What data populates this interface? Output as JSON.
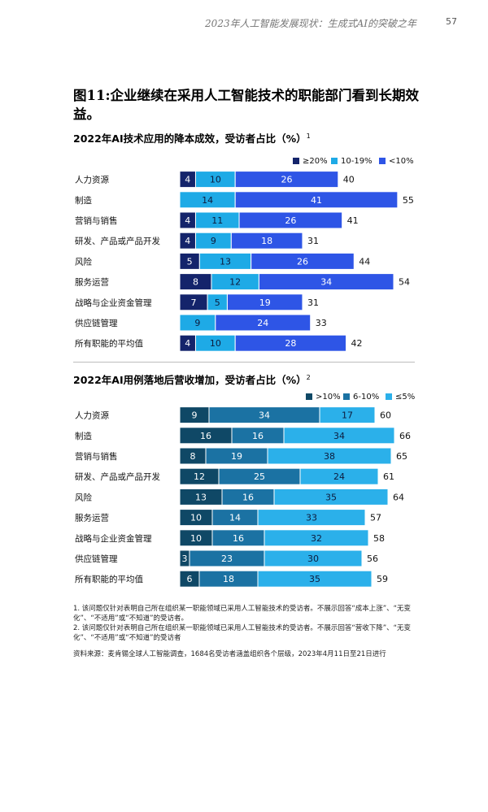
{
  "header": {
    "running_title": "2023年人工智能发展现状：生成式AI的突破之年",
    "page_number": "57"
  },
  "figure_title": "图11:企业继续在采用人工智能技术的职能部门看到长期效益。",
  "chart_data": [
    {
      "type": "bar",
      "stacked": true,
      "orientation": "horizontal",
      "title": "2022年AI技术应用的降本成效，受访者占比（%）",
      "footnote_ref": "1",
      "categories": [
        "人力资源",
        "制造",
        "营销与销售",
        "研发、产品或产品开发",
        "风险",
        "服务运营",
        "战略与企业资金管理",
        "供应链管理",
        "所有职能的平均值"
      ],
      "series": [
        {
          "name": "≥20%",
          "color": "#14246b",
          "values": [
            4,
            0,
            4,
            4,
            5,
            8,
            7,
            0,
            4
          ]
        },
        {
          "name": "10-19%",
          "color": "#1eaae6",
          "values": [
            10,
            14,
            11,
            9,
            13,
            12,
            5,
            9,
            10
          ]
        },
        {
          "name": "<10%",
          "color": "#2e55e6",
          "values": [
            26,
            41,
            26,
            18,
            26,
            34,
            19,
            24,
            28
          ]
        }
      ],
      "totals": [
        40,
        55,
        41,
        31,
        44,
        54,
        31,
        33,
        42
      ],
      "legend_position": "top-right",
      "grid": false
    },
    {
      "type": "bar",
      "stacked": true,
      "orientation": "horizontal",
      "title": "2022年AI用例落地后营收增加，受访者占比（%）",
      "footnote_ref": "2",
      "categories": [
        "人力资源",
        "制造",
        "营销与销售",
        "研发、产品或产品开发",
        "风险",
        "服务运营",
        "战略与企业资金管理",
        "供应链管理",
        "所有职能的平均值"
      ],
      "series": [
        {
          "name": ">10%",
          "color": "#0f4866",
          "values": [
            9,
            16,
            8,
            12,
            13,
            10,
            10,
            3,
            6
          ]
        },
        {
          "name": "6-10%",
          "color": "#1b72a3",
          "values": [
            34,
            16,
            19,
            25,
            16,
            14,
            16,
            23,
            18
          ]
        },
        {
          "name": "≤5%",
          "color": "#2bb0ea",
          "values": [
            17,
            34,
            38,
            24,
            35,
            33,
            32,
            30,
            35
          ]
        }
      ],
      "totals": [
        60,
        66,
        65,
        61,
        64,
        57,
        58,
        56,
        59
      ],
      "legend_position": "top-right",
      "grid": false
    }
  ],
  "footnotes": [
    "1. 该问题仅针对表明自己所在组织某一职能领域已采用人工智能技术的受访者。不展示回答“成本上涨”、“无变化”、“不适用”或“不知道”的受访者。",
    "2. 该问题仅针对表明自己所在组织某一职能领域已采用人工智能技术的受访者。不展示回答“营收下降”、“无变化”、“不适用”或“不知道”的受访者"
  ],
  "source": "资料来源：麦肯锡全球人工智能调查，1684名受访者涵盖组织各个层级，2023年4月11日至21日进行"
}
